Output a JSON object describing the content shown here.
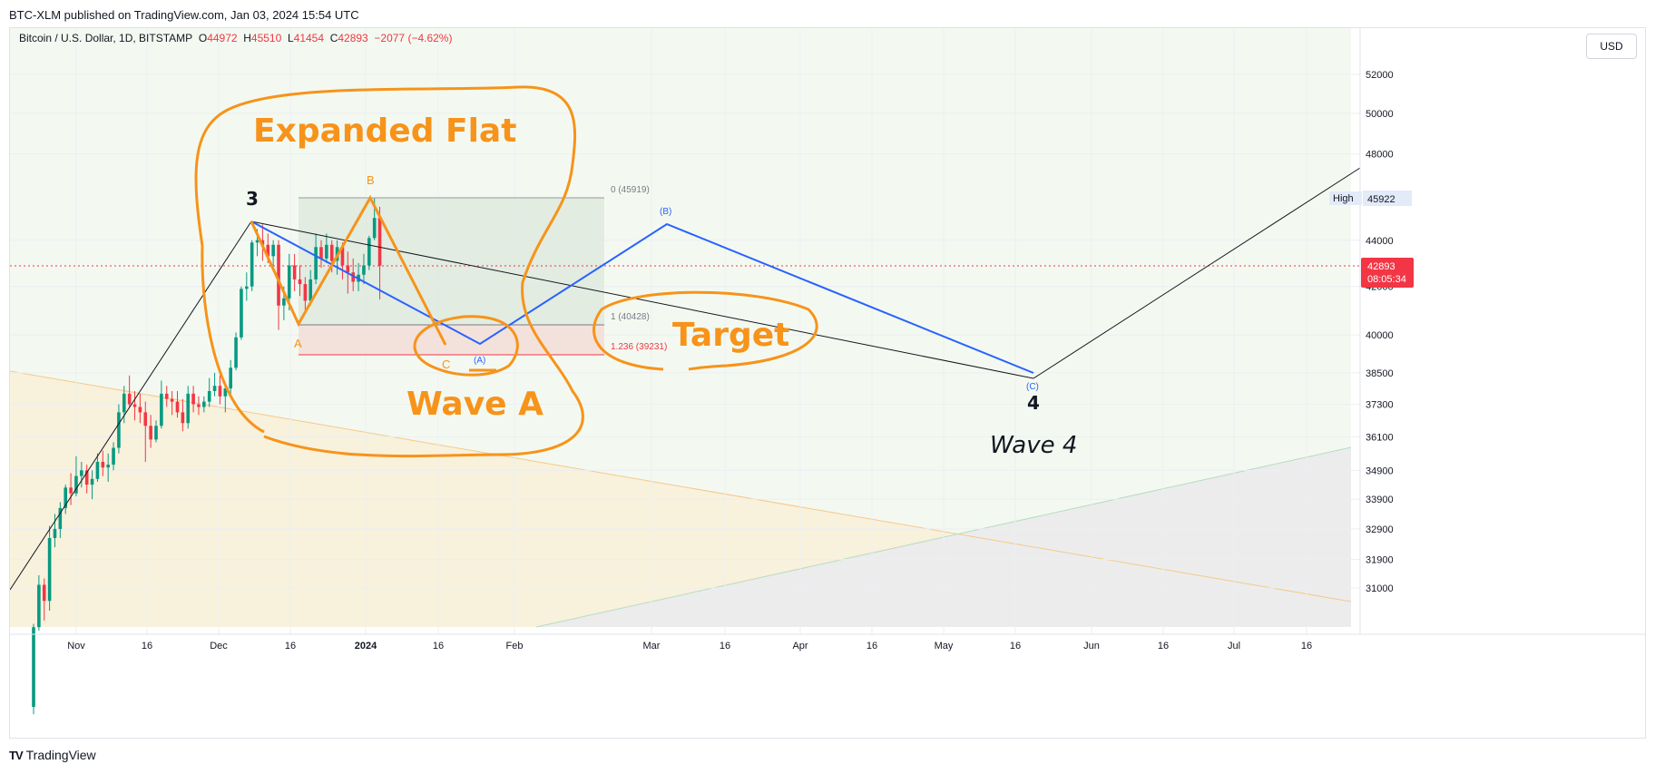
{
  "header": {
    "publisher": "BTC-XLM published on TradingView.com, Jan 03, 2024 15:54 UTC"
  },
  "legend": {
    "symbol": "Bitcoin / U.S. Dollar, 1D, BITSTAMP",
    "o_label": "O",
    "o": "44972",
    "h_label": "H",
    "h": "45510",
    "l_label": "L",
    "l": "41454",
    "c_label": "C",
    "c": "42893",
    "change": "−2077 (−4.62%)"
  },
  "currency_button": "USD",
  "footer": {
    "brand": "TradingView",
    "logo": "TV"
  },
  "colors": {
    "up": "#089981",
    "down": "#f23645",
    "orange": "#f7931a",
    "blue": "#2962ff",
    "price_line": "#f23645"
  },
  "price_axis": {
    "ticks": [
      "52000",
      "50000",
      "48000",
      "44000",
      "42000",
      "40000",
      "38500",
      "37300",
      "36100",
      "34900",
      "33900",
      "32900",
      "31900",
      "31000"
    ],
    "high_label": "High",
    "high_value": "45922",
    "last_price": "42893",
    "countdown": "08:05:34"
  },
  "time_axis": {
    "ticks": [
      "Nov",
      "16",
      "Dec",
      "16",
      "2024",
      "16",
      "Feb",
      "Mar",
      "16",
      "Apr",
      "16",
      "May",
      "16",
      "Jun",
      "16",
      "Jul",
      "16"
    ]
  },
  "fib": {
    "level0": "0 (45919)",
    "level1": "1 (40428)",
    "level1236": "1.236 (39231)"
  },
  "annotations": {
    "expanded_flat": "Expanded Flat",
    "wave_a": "Wave A",
    "target": "Target",
    "wave_4": "Wave 4",
    "label_3": "3",
    "label_4": "4",
    "label_a": "A",
    "label_b": "B",
    "label_c": "C",
    "label_pa": "(A)",
    "label_pb": "(B)",
    "label_pc": "(C)"
  },
  "chart_data": {
    "type": "candlestick",
    "symbol": "Bitcoin / U.S. Dollar, 1D, BITSTAMP",
    "y_scale": "log",
    "ylim": [
      30500,
      53500
    ],
    "ohlc": [
      [
        27500,
        29900,
        27300,
        29800
      ],
      [
        29800,
        31400,
        29700,
        31100
      ],
      [
        31100,
        31300,
        30000,
        30600
      ],
      [
        30600,
        33000,
        30300,
        32600
      ],
      [
        32600,
        33400,
        32300,
        32900
      ],
      [
        32900,
        33800,
        32600,
        33600
      ],
      [
        33600,
        34400,
        33400,
        34300
      ],
      [
        34300,
        34800,
        33700,
        34100
      ],
      [
        34100,
        35400,
        34000,
        34700
      ],
      [
        34700,
        35200,
        34300,
        34900
      ],
      [
        34900,
        35100,
        34100,
        34400
      ],
      [
        34400,
        34900,
        33900,
        34600
      ],
      [
        34600,
        35500,
        34500,
        35200
      ],
      [
        35200,
        35600,
        34700,
        35000
      ],
      [
        35000,
        35500,
        34500,
        35100
      ],
      [
        35100,
        35900,
        34900,
        35700
      ],
      [
        35700,
        37300,
        35500,
        37000
      ],
      [
        37000,
        38000,
        36600,
        37700
      ],
      [
        37700,
        38400,
        37200,
        37300
      ],
      [
        37300,
        37800,
        36700,
        37200
      ],
      [
        37200,
        37700,
        36600,
        37000
      ],
      [
        37000,
        37400,
        35200,
        36500
      ],
      [
        36500,
        36900,
        35700,
        36000
      ],
      [
        36000,
        36700,
        35900,
        36500
      ],
      [
        36500,
        38200,
        36400,
        37700
      ],
      [
        37700,
        38000,
        37200,
        37500
      ],
      [
        37500,
        37800,
        36900,
        37400
      ],
      [
        37400,
        37800,
        36800,
        37000
      ],
      [
        37000,
        37500,
        36300,
        36600
      ],
      [
        36600,
        38000,
        36400,
        37700
      ],
      [
        37700,
        38000,
        37000,
        37300
      ],
      [
        37300,
        37600,
        36900,
        37200
      ],
      [
        37200,
        37600,
        37000,
        37400
      ],
      [
        37400,
        38300,
        37200,
        37800
      ],
      [
        37800,
        38500,
        37600,
        38000
      ],
      [
        38000,
        38400,
        37300,
        37600
      ],
      [
        37600,
        38100,
        37000,
        37900
      ],
      [
        37900,
        39000,
        37600,
        38700
      ],
      [
        38700,
        40100,
        38600,
        39900
      ],
      [
        39900,
        42000,
        39800,
        41900
      ],
      [
        41900,
        42600,
        41400,
        42000
      ],
      [
        42000,
        44000,
        41800,
        43900
      ],
      [
        43900,
        44500,
        43300,
        44000
      ],
      [
        44000,
        44700,
        43100,
        43800
      ],
      [
        43800,
        44300,
        43000,
        43300
      ],
      [
        43300,
        44000,
        42900,
        43800
      ],
      [
        43800,
        44000,
        40200,
        41200
      ],
      [
        41200,
        42000,
        40600,
        41500
      ],
      [
        41500,
        43400,
        41000,
        42900
      ],
      [
        42900,
        43400,
        41800,
        42300
      ],
      [
        42300,
        42900,
        41600,
        42100
      ],
      [
        42100,
        42400,
        40900,
        41400
      ],
      [
        41400,
        42700,
        41200,
        42300
      ],
      [
        42300,
        44300,
        42100,
        43700
      ],
      [
        43700,
        44000,
        42800,
        43200
      ],
      [
        43200,
        44300,
        43000,
        43800
      ],
      [
        43800,
        44000,
        42600,
        43100
      ],
      [
        43100,
        44000,
        42500,
        43700
      ],
      [
        43700,
        43900,
        42300,
        42900
      ],
      [
        42900,
        43500,
        41700,
        42600
      ],
      [
        42600,
        43200,
        41800,
        42200
      ],
      [
        42200,
        43000,
        41800,
        42500
      ],
      [
        42500,
        43400,
        42100,
        42900
      ],
      [
        42900,
        44200,
        42700,
        44100
      ],
      [
        44100,
        45900,
        44000,
        45000
      ],
      [
        45000,
        45510,
        41454,
        42893
      ]
    ],
    "waves": {
      "primary": [
        {
          "label": "3",
          "date": "2023-12-08",
          "price": 44700
        },
        {
          "label": "4",
          "date": "2024-05-20",
          "price": 38400
        }
      ],
      "expanded_flat": [
        {
          "label": "A",
          "date": "2023-12-18",
          "price": 40600
        },
        {
          "label": "B",
          "date": "2024-01-03",
          "price": 45919
        },
        {
          "label": "C",
          "date": "2024-01-16",
          "price": 39600
        }
      ],
      "projection": [
        {
          "label": "(A)",
          "date": "2024-01-22",
          "price": 39700
        },
        {
          "label": "(B)",
          "date": "2024-03-04",
          "price": 44600
        },
        {
          "label": "(C)",
          "date": "2024-05-20",
          "price": 38400
        }
      ]
    },
    "fib_levels": [
      {
        "ratio": 0,
        "price": 45919
      },
      {
        "ratio": 1,
        "price": 40428
      },
      {
        "ratio": 1.236,
        "price": 39231
      }
    ]
  }
}
